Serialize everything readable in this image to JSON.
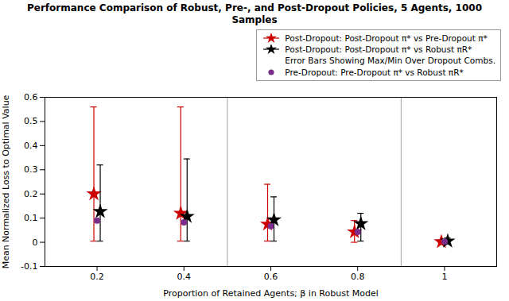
{
  "chart_data": {
    "type": "errorbar",
    "title": "Performance Comparison of Robust, Pre-, and Post-Dropout Policies, 5 Agents, 1000 Samples",
    "xlabel": "Proportion of Retained Agents; β in Robust Model",
    "ylabel": "Mean Normalized Loss to Optimal Value",
    "x": [
      0.2,
      0.4,
      0.6,
      0.8,
      1
    ],
    "xlim": [
      0.08,
      1.12
    ],
    "xticks": [
      0.2,
      0.4,
      0.6,
      0.8,
      1
    ],
    "ylim": [
      -0.1,
      0.6
    ],
    "yticks": [
      -0.1,
      0,
      0.1,
      0.2,
      0.3,
      0.4,
      0.5,
      0.6
    ],
    "grid": false,
    "legend": "upper right",
    "vlines": [
      0.5,
      0.9
    ],
    "legend_note": "Error Bars Showing Max/Min Over Dropout Combs.",
    "series": [
      {
        "name": "Post-Dropout: Post-Dropout π* vs Pre-Dropout π*",
        "color": "#cc0000",
        "marker": "star",
        "values": [
          0.2,
          0.12,
          0.075,
          0.043,
          0.002
        ],
        "upper": [
          0.56,
          0.56,
          0.24,
          0.09,
          0.01
        ],
        "lower": [
          0.005,
          0.005,
          0.005,
          0.0,
          -0.002
        ]
      },
      {
        "name": "Post-Dropout: Post-Dropout π* vs Robust πR*",
        "color": "#000000",
        "marker": "star",
        "values": [
          0.127,
          0.107,
          0.093,
          0.077,
          0.005
        ],
        "upper": [
          0.32,
          0.345,
          0.188,
          0.12,
          0.018
        ],
        "lower": [
          0.005,
          0.005,
          0.005,
          0.005,
          -0.002
        ]
      },
      {
        "name": "Pre-Dropout: Pre-Dropout π* vs Robust πR*",
        "color": "#7B2D8B",
        "marker": "circle",
        "values": [
          0.09,
          0.082,
          0.067,
          0.043,
          0.003
        ]
      }
    ]
  }
}
